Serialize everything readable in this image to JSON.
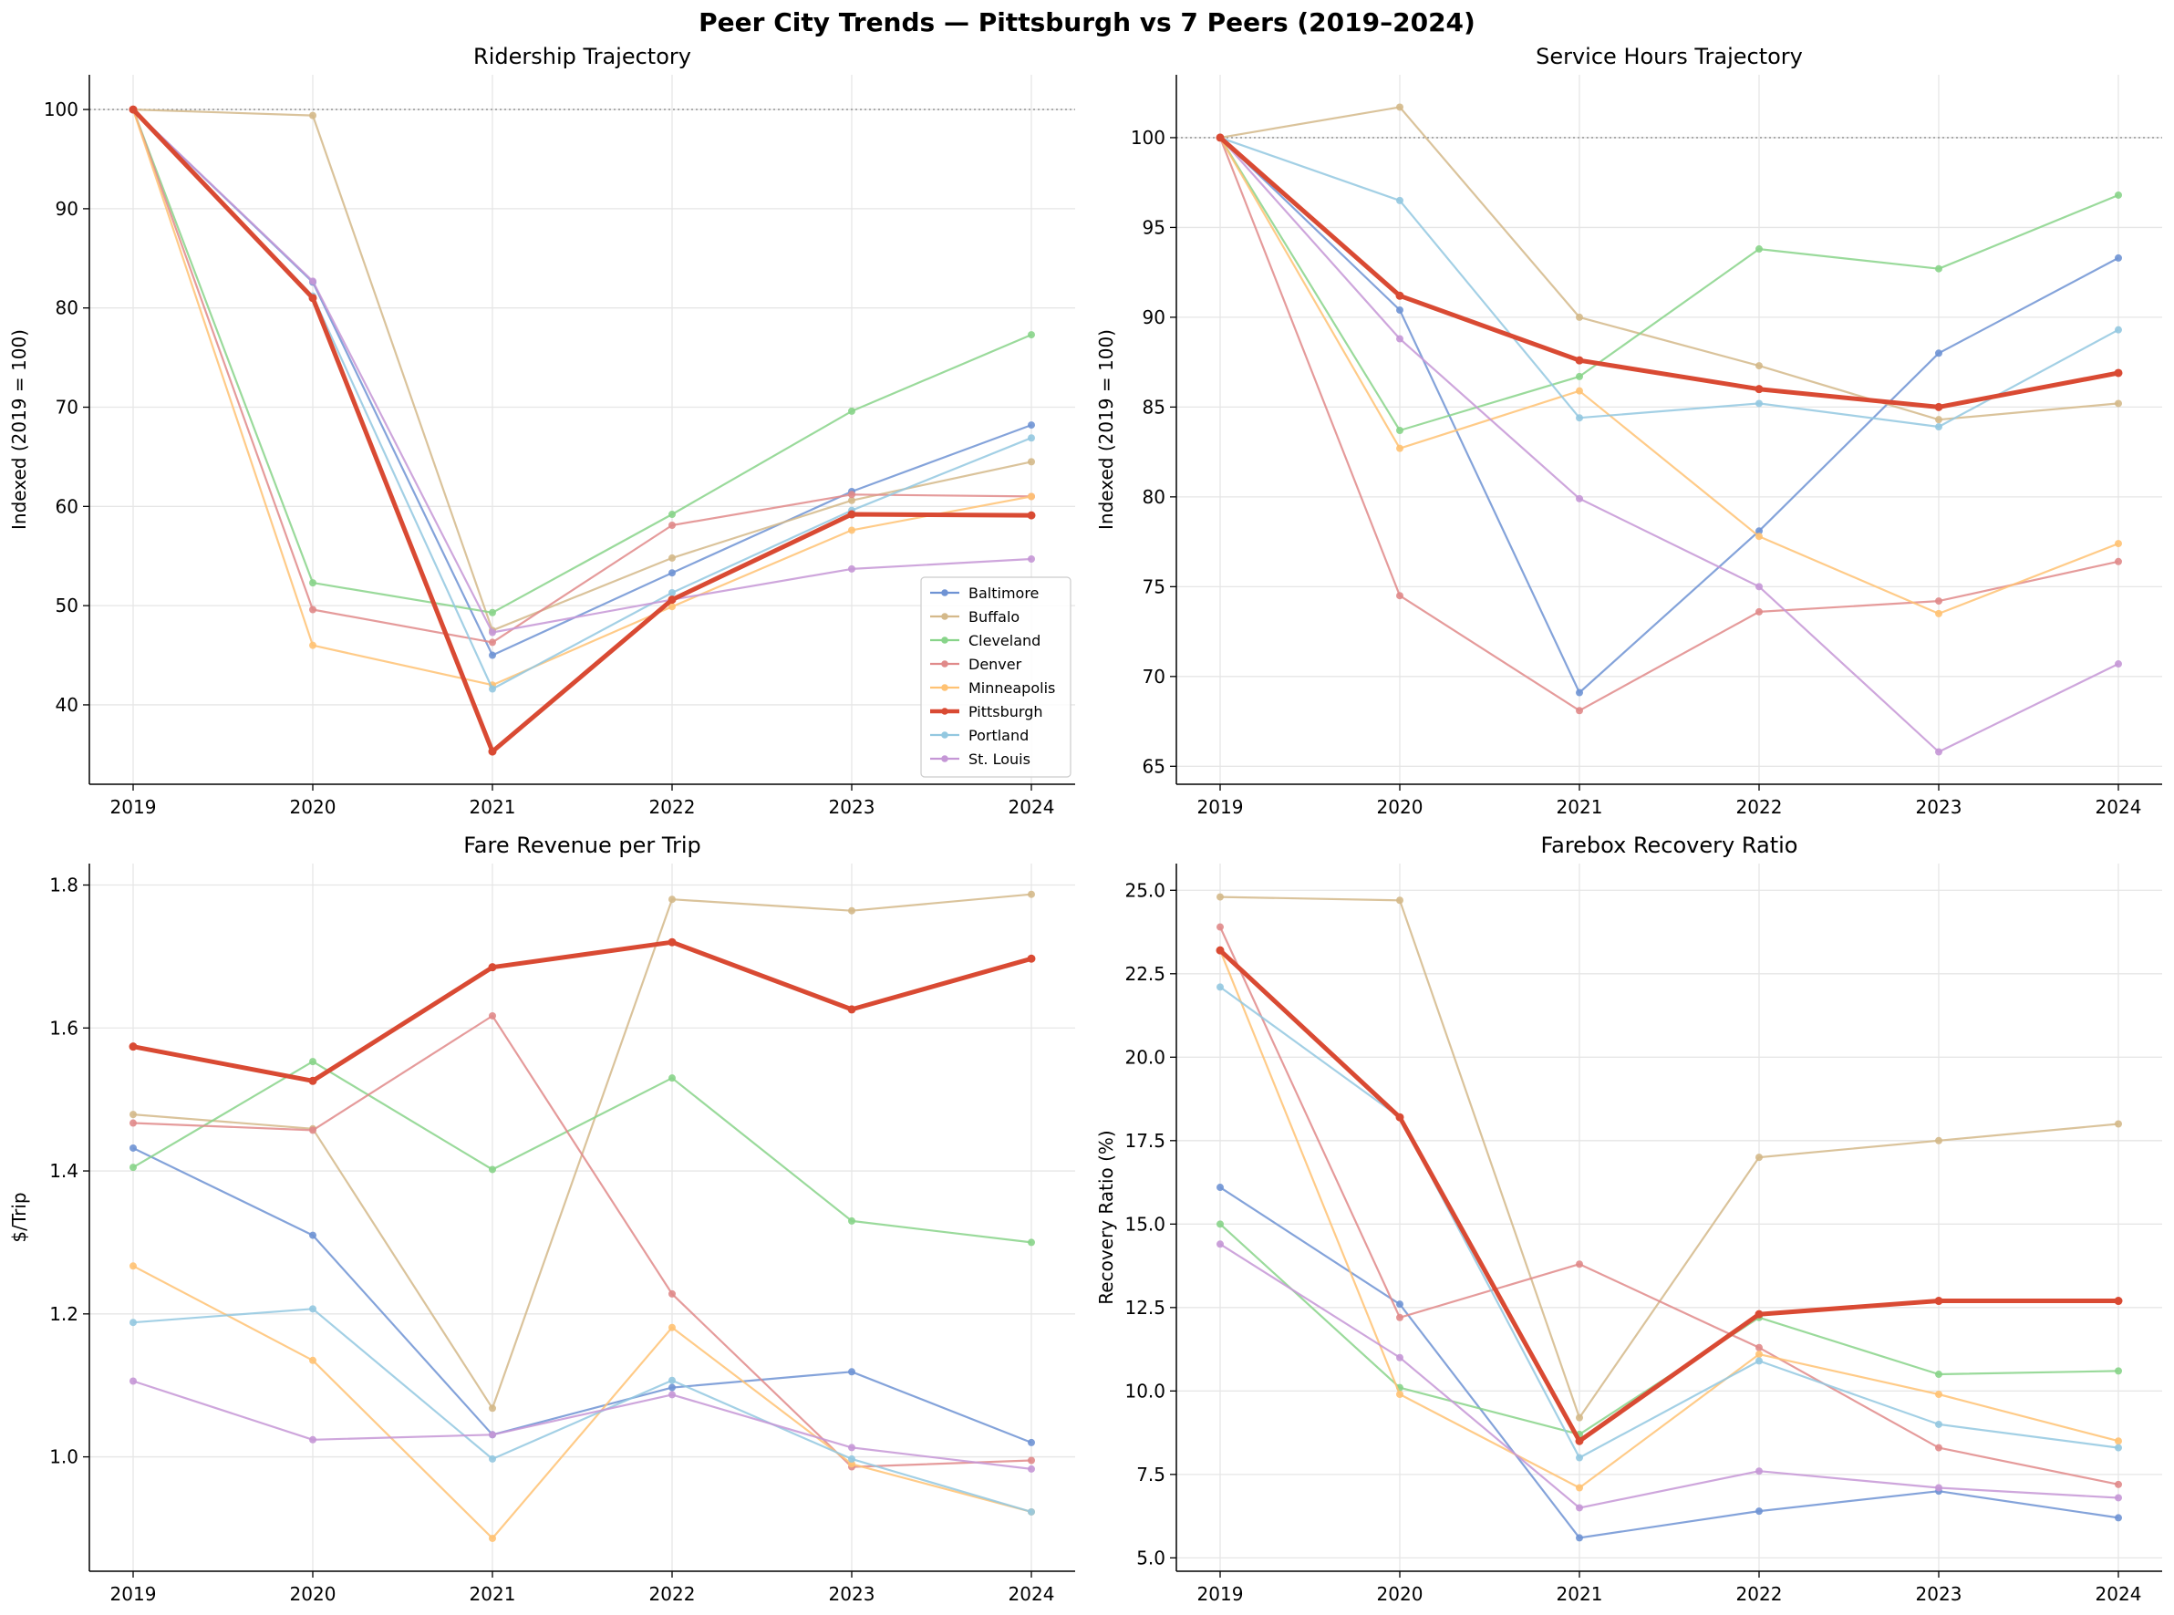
{
  "figure_title": "Peer City Trends — Pittsburgh vs 7 Peers (2019–2024)",
  "series_colors": {
    "Baltimore": "#6f93d4",
    "Buffalo": "#d4b98a",
    "Cleveland": "#88d48a",
    "Denver": "#e08a8a",
    "Minneapolis": "#ffc273",
    "Pittsburgh": "#d94a33",
    "Portland": "#93c8e0",
    "St. Louis": "#c597d6"
  },
  "legend": {
    "entries": [
      "Baltimore",
      "Buffalo",
      "Cleveland",
      "Denver",
      "Minneapolis",
      "Pittsburgh",
      "Portland",
      "St. Louis"
    ],
    "placement": "lower-right of first panel"
  },
  "chart_data": [
    {
      "type": "line",
      "title": "Ridership Trajectory",
      "xlabel": "",
      "ylabel": "Indexed (2019 = 100)",
      "x": [
        2019,
        2020,
        2021,
        2022,
        2023,
        2024
      ],
      "ylim": [
        32,
        103.5
      ],
      "yticks": [
        40,
        50,
        60,
        70,
        80,
        90,
        100
      ],
      "ytick_labels": [
        "40",
        "50",
        "60",
        "70",
        "80",
        "90",
        "100"
      ],
      "reference_line": 100,
      "grid": true,
      "series": [
        {
          "name": "Baltimore",
          "values": [
            100,
            82.6,
            45.0,
            53.3,
            61.5,
            68.2
          ]
        },
        {
          "name": "Buffalo",
          "values": [
            100,
            99.4,
            47.5,
            54.8,
            60.6,
            64.5
          ]
        },
        {
          "name": "Cleveland",
          "values": [
            100,
            52.3,
            49.3,
            59.2,
            69.6,
            77.3
          ]
        },
        {
          "name": "Denver",
          "values": [
            100,
            49.6,
            46.3,
            58.1,
            61.2,
            61.0
          ]
        },
        {
          "name": "Minneapolis",
          "values": [
            100,
            46.0,
            42.0,
            49.9,
            57.6,
            61.0
          ]
        },
        {
          "name": "Pittsburgh",
          "values": [
            100,
            81.0,
            35.3,
            50.6,
            59.2,
            59.1
          ]
        },
        {
          "name": "Portland",
          "values": [
            100,
            81.2,
            41.6,
            51.3,
            59.6,
            66.9
          ]
        },
        {
          "name": "St. Louis",
          "values": [
            100,
            82.7,
            47.3,
            50.6,
            53.7,
            54.7
          ]
        }
      ]
    },
    {
      "type": "line",
      "title": "Service Hours Trajectory",
      "xlabel": "",
      "ylabel": "Indexed (2019 = 100)",
      "x": [
        2019,
        2020,
        2021,
        2022,
        2023,
        2024
      ],
      "ylim": [
        64,
        103.5
      ],
      "yticks": [
        65,
        70,
        75,
        80,
        85,
        90,
        95,
        100
      ],
      "ytick_labels": [
        "65",
        "70",
        "75",
        "80",
        "85",
        "90",
        "95",
        "100"
      ],
      "reference_line": 100,
      "grid": true,
      "series": [
        {
          "name": "Baltimore",
          "values": [
            100,
            90.4,
            69.1,
            78.1,
            88.0,
            93.3
          ]
        },
        {
          "name": "Buffalo",
          "values": [
            100,
            101.7,
            90.0,
            87.3,
            84.3,
            85.2
          ]
        },
        {
          "name": "Cleveland",
          "values": [
            100,
            83.7,
            86.7,
            93.8,
            92.7,
            96.8
          ]
        },
        {
          "name": "Denver",
          "values": [
            100,
            74.5,
            68.1,
            73.6,
            74.2,
            76.4
          ]
        },
        {
          "name": "Minneapolis",
          "values": [
            100,
            82.7,
            85.9,
            77.8,
            73.5,
            77.4
          ]
        },
        {
          "name": "Pittsburgh",
          "values": [
            100,
            91.2,
            87.6,
            86.0,
            85.0,
            86.9
          ]
        },
        {
          "name": "Portland",
          "values": [
            100,
            96.5,
            84.4,
            85.2,
            83.9,
            89.3
          ]
        },
        {
          "name": "St. Louis",
          "values": [
            100,
            88.8,
            79.9,
            75.0,
            65.8,
            70.7
          ]
        }
      ]
    },
    {
      "type": "line",
      "title": "Fare Revenue per Trip",
      "xlabel": "",
      "ylabel": "$/Trip",
      "x": [
        2019,
        2020,
        2021,
        2022,
        2023,
        2024
      ],
      "ylim": [
        0.84,
        1.83
      ],
      "yticks": [
        1.0,
        1.2,
        1.4,
        1.6,
        1.8
      ],
      "ytick_labels": [
        "1.0",
        "1.2",
        "1.4",
        "1.6",
        "1.8"
      ],
      "grid": true,
      "series": [
        {
          "name": "Baltimore",
          "values": [
            1.432,
            1.31,
            1.031,
            1.097,
            1.119,
            1.02
          ]
        },
        {
          "name": "Buffalo",
          "values": [
            1.479,
            1.459,
            1.068,
            1.78,
            1.764,
            1.787
          ]
        },
        {
          "name": "Cleveland",
          "values": [
            1.405,
            1.553,
            1.402,
            1.53,
            1.33,
            1.3
          ]
        },
        {
          "name": "Denver",
          "values": [
            1.467,
            1.457,
            1.617,
            1.228,
            0.986,
            0.995
          ]
        },
        {
          "name": "Minneapolis",
          "values": [
            1.267,
            1.135,
            0.886,
            1.181,
            0.99,
            0.923
          ]
        },
        {
          "name": "Pittsburgh",
          "values": [
            1.574,
            1.526,
            1.685,
            1.72,
            1.626,
            1.697
          ]
        },
        {
          "name": "Portland",
          "values": [
            1.188,
            1.207,
            0.997,
            1.107,
            0.997,
            0.923
          ]
        },
        {
          "name": "St. Louis",
          "values": [
            1.106,
            1.024,
            1.031,
            1.087,
            1.013,
            0.983
          ]
        }
      ]
    },
    {
      "type": "line",
      "title": "Farebox Recovery Ratio",
      "xlabel": "",
      "ylabel": "Recovery Ratio (%)",
      "x": [
        2019,
        2020,
        2021,
        2022,
        2023,
        2024
      ],
      "ylim": [
        4.6,
        25.8
      ],
      "yticks": [
        5.0,
        7.5,
        10.0,
        12.5,
        15.0,
        17.5,
        20.0,
        22.5,
        25.0
      ],
      "ytick_labels": [
        "5.0",
        "7.5",
        "10.0",
        "12.5",
        "15.0",
        "17.5",
        "20.0",
        "22.5",
        "25.0"
      ],
      "grid": true,
      "series": [
        {
          "name": "Baltimore",
          "values": [
            16.1,
            12.6,
            5.6,
            6.4,
            7.0,
            6.2
          ]
        },
        {
          "name": "Buffalo",
          "values": [
            24.8,
            24.7,
            9.2,
            17.0,
            17.5,
            18.0
          ]
        },
        {
          "name": "Cleveland",
          "values": [
            15.0,
            10.1,
            8.7,
            12.2,
            10.5,
            10.6
          ]
        },
        {
          "name": "Denver",
          "values": [
            23.9,
            12.2,
            13.8,
            11.3,
            8.3,
            7.2
          ]
        },
        {
          "name": "Minneapolis",
          "values": [
            23.2,
            9.9,
            7.1,
            11.1,
            9.9,
            8.5
          ]
        },
        {
          "name": "Pittsburgh",
          "values": [
            23.2,
            18.2,
            8.5,
            12.3,
            12.7,
            12.7
          ]
        },
        {
          "name": "Portland",
          "values": [
            22.1,
            18.2,
            8.0,
            10.9,
            9.0,
            8.3
          ]
        },
        {
          "name": "St. Louis",
          "values": [
            14.4,
            11.0,
            6.5,
            7.6,
            7.1,
            6.8
          ]
        }
      ]
    }
  ]
}
